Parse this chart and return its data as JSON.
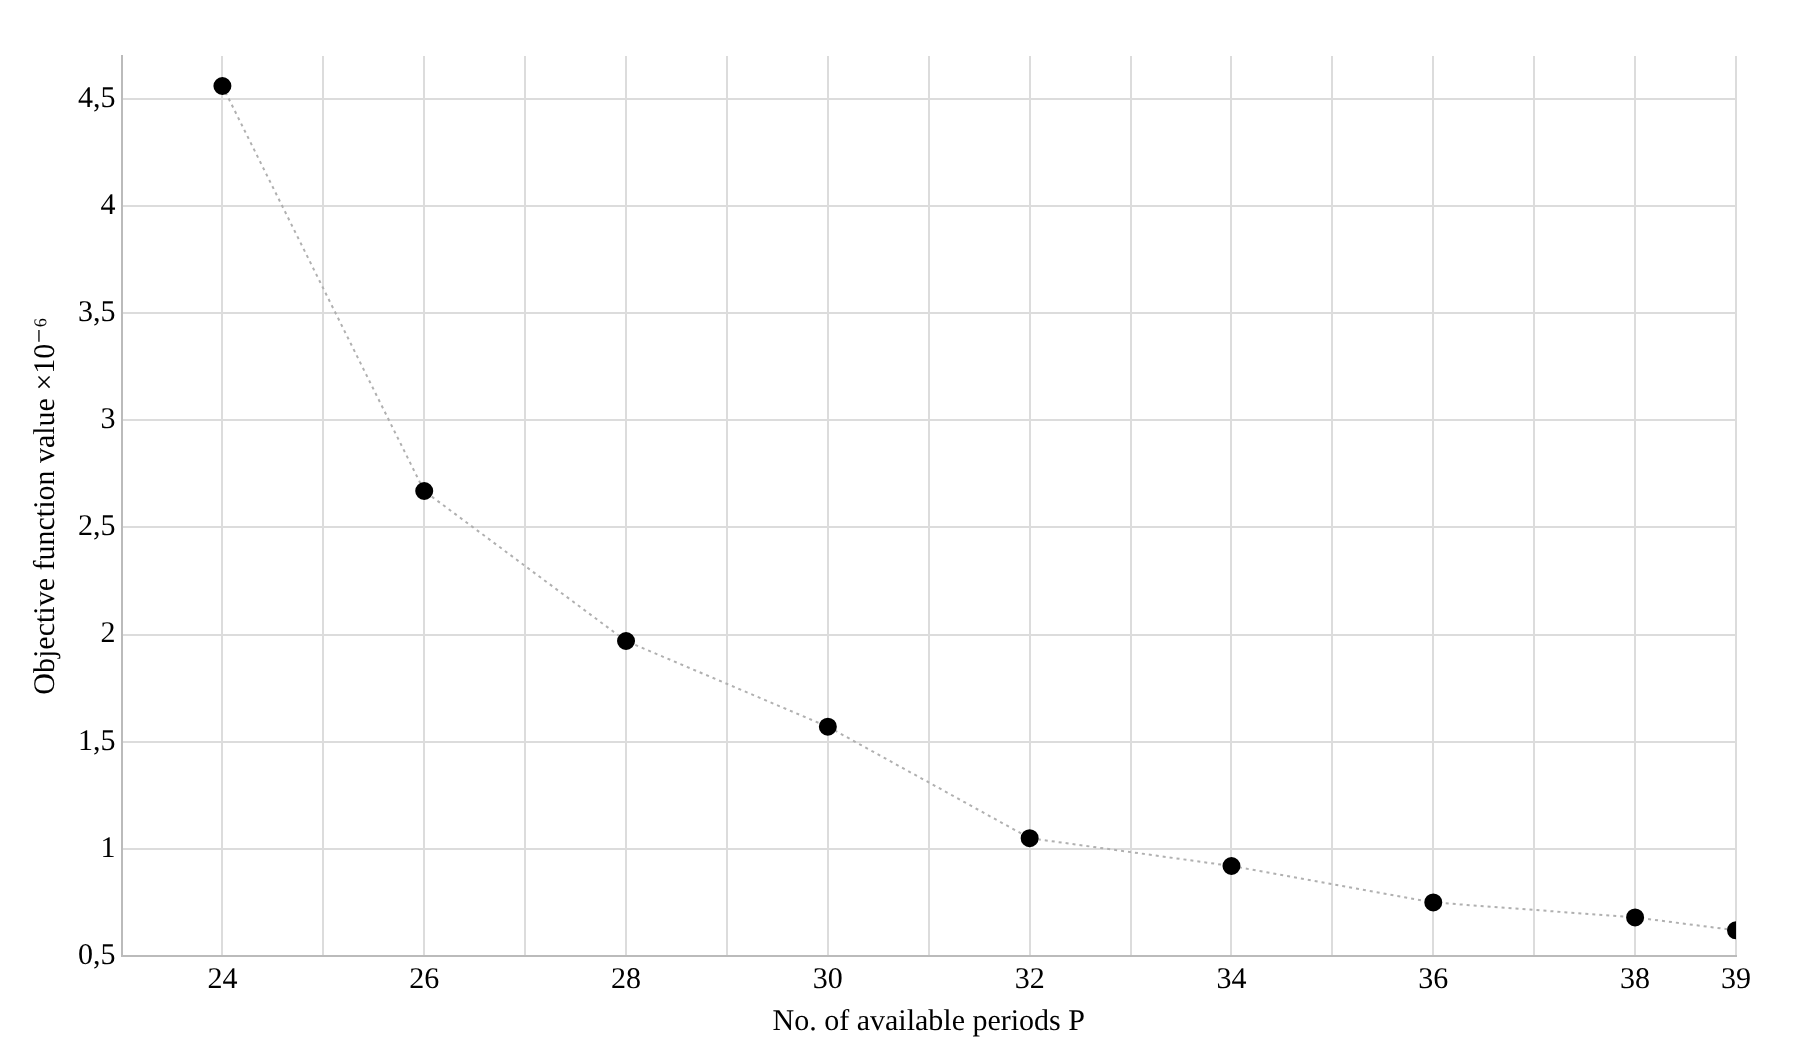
{
  "chart_data": {
    "type": "line",
    "xlabel": "No. of available periods P",
    "ylabel": "Objective function value ×10⁻⁶",
    "x": [
      24,
      26,
      28,
      30,
      32,
      34,
      36,
      38,
      39
    ],
    "series": [
      {
        "color": "#000000",
        "values": [
          4.56,
          2.67,
          1.97,
          1.57,
          1.05,
          0.92,
          0.75,
          0.68,
          0.62
        ]
      }
    ],
    "xlim": [
      23,
      39
    ],
    "xticks": [
      24,
      {
        "value": 25,
        "label": null
      },
      26,
      {
        "value": 27,
        "label": null
      },
      28,
      {
        "value": 29,
        "label": null
      },
      30,
      {
        "value": 31,
        "label": null
      },
      32,
      {
        "value": 33,
        "label": null
      },
      34,
      {
        "value": 35,
        "label": null
      },
      36,
      {
        "value": 37,
        "label": null
      },
      38,
      39
    ],
    "ylim": [
      0.5,
      4.7
    ],
    "yticks": [
      {
        "value": 0.5,
        "label": "0,5"
      },
      1,
      {
        "value": 1.5,
        "label": "1,5"
      },
      2,
      {
        "value": 2.5,
        "label": "2,5"
      },
      3,
      {
        "value": 3.5,
        "label": "3,5"
      },
      4,
      {
        "value": 4.5,
        "label": "4,5"
      }
    ],
    "grid": true,
    "legend": false,
    "marker": "circle",
    "line_style": "dotted"
  }
}
